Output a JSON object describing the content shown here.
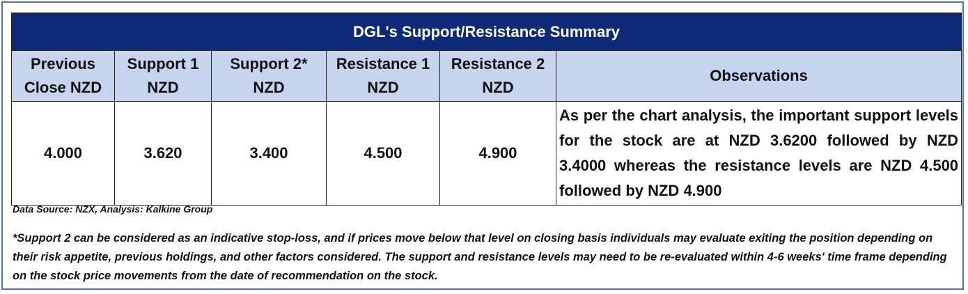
{
  "table": {
    "title": "DGL's Support/Resistance Summary",
    "headers": [
      {
        "line1": "Previous",
        "line2": "Close NZD"
      },
      {
        "line1": "Support 1",
        "line2": "NZD"
      },
      {
        "line1": "Support 2*",
        "line2": "NZD"
      },
      {
        "line1": "Resistance 1",
        "line2": "NZD"
      },
      {
        "line1": "Resistance 2",
        "line2": "NZD"
      },
      {
        "line1": "Observations",
        "line2": ""
      }
    ],
    "values": [
      "4.000",
      "3.620",
      "3.400",
      "4.500",
      "4.900"
    ],
    "observation": "As per the chart analysis, the important support levels for the stock are at NZD 3.6200 followed by NZD 3.4000 whereas the resistance levels are NZD 4.500 followed by NZD 4.900"
  },
  "footer": {
    "source": "Data Source: NZX, Analysis: Kalkine Group",
    "note": "*Support 2 can be considered as an indicative stop-loss, and if prices move below that level on closing basis individuals may evaluate exiting the position depending on their risk appetite, previous holdings, and other factors considered. The support and resistance levels may need to be re-evaluated within 4-6 weeks' time frame depending on the stock price movements from the date of recommendation on the stock."
  },
  "colors": {
    "title_bg": "#0d2a78",
    "header_bg": "#c7d4ee",
    "frame_border": "#4a76b8"
  }
}
